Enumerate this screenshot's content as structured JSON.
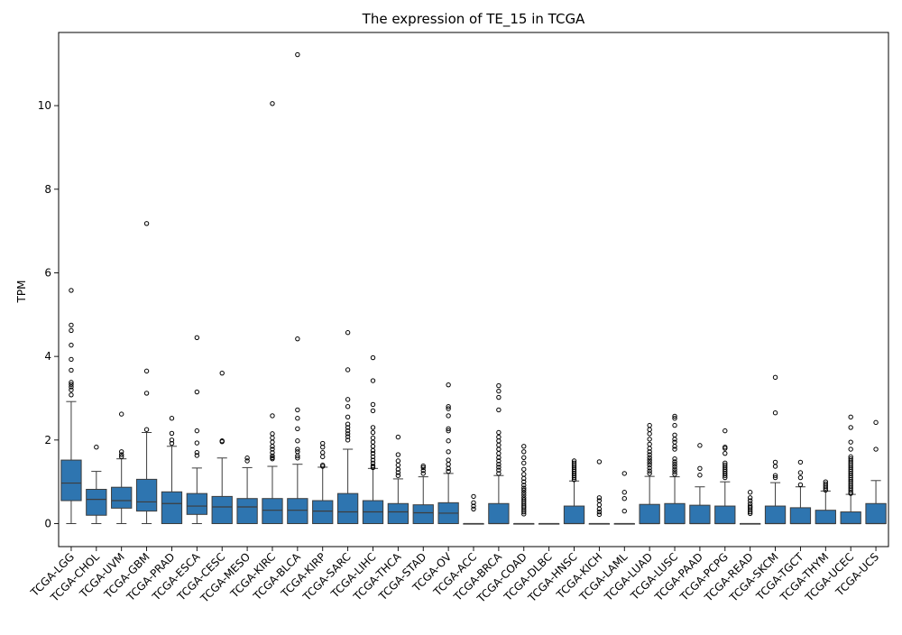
{
  "chart_data": {
    "type": "box",
    "title": "The expression of TE_15 in TCGA",
    "xlabel": "",
    "ylabel": "TPM",
    "ylim": [
      -0.55,
      11.75
    ],
    "yticks": [
      0,
      2,
      4,
      6,
      8,
      10
    ],
    "box_color": "#2e75b0",
    "series": [
      {
        "category": "TCGA-LGG",
        "q1": 0.55,
        "median": 0.97,
        "q3": 1.52,
        "whisker_low": 0.0,
        "whisker_high": 2.92,
        "outliers": [
          5.58,
          4.75,
          4.62,
          4.27,
          3.93,
          3.67,
          3.38,
          3.33,
          3.27,
          3.2,
          3.08
        ]
      },
      {
        "category": "TCGA-CHOL",
        "q1": 0.2,
        "median": 0.58,
        "q3": 0.82,
        "whisker_low": 0.0,
        "whisker_high": 1.25,
        "outliers": [
          1.83
        ]
      },
      {
        "category": "TCGA-UVM",
        "q1": 0.37,
        "median": 0.55,
        "q3": 0.87,
        "whisker_low": 0.0,
        "whisker_high": 1.55,
        "outliers": [
          2.62,
          1.72,
          1.65,
          1.6
        ]
      },
      {
        "category": "TCGA-GBM",
        "q1": 0.3,
        "median": 0.52,
        "q3": 1.06,
        "whisker_low": 0.0,
        "whisker_high": 2.18,
        "outliers": [
          7.18,
          3.65,
          3.12,
          2.25
        ]
      },
      {
        "category": "TCGA-PRAD",
        "q1": 0.0,
        "median": 0.48,
        "q3": 0.76,
        "whisker_low": 0.0,
        "whisker_high": 1.85,
        "outliers": [
          2.52,
          2.16,
          2.0,
          1.92
        ]
      },
      {
        "category": "TCGA-ESCA",
        "q1": 0.22,
        "median": 0.42,
        "q3": 0.72,
        "whisker_low": 0.0,
        "whisker_high": 1.33,
        "outliers": [
          4.45,
          3.15,
          2.22,
          1.93,
          1.7,
          1.63
        ]
      },
      {
        "category": "TCGA-CESC",
        "q1": 0.0,
        "median": 0.4,
        "q3": 0.65,
        "whisker_low": 0.0,
        "whisker_high": 1.57,
        "outliers": [
          3.6,
          1.98,
          1.96
        ]
      },
      {
        "category": "TCGA-MESO",
        "q1": 0.0,
        "median": 0.4,
        "q3": 0.6,
        "whisker_low": 0.0,
        "whisker_high": 1.34,
        "outliers": [
          1.57,
          1.5
        ]
      },
      {
        "category": "TCGA-KIRC",
        "q1": 0.0,
        "median": 0.32,
        "q3": 0.6,
        "whisker_low": 0.0,
        "whisker_high": 1.37,
        "outliers": [
          10.05,
          2.58,
          2.15,
          2.05,
          1.95,
          1.85,
          1.78,
          1.7,
          1.62,
          1.58,
          1.55
        ]
      },
      {
        "category": "TCGA-BLCA",
        "q1": 0.0,
        "median": 0.32,
        "q3": 0.6,
        "whisker_low": 0.0,
        "whisker_high": 1.42,
        "outliers": [
          11.22,
          4.42,
          2.72,
          2.52,
          2.27,
          1.98,
          1.78,
          1.72,
          1.62,
          1.57
        ]
      },
      {
        "category": "TCGA-KIRP",
        "q1": 0.0,
        "median": 0.3,
        "q3": 0.55,
        "whisker_low": 0.0,
        "whisker_high": 1.35,
        "outliers": [
          1.92,
          1.83,
          1.7,
          1.6,
          1.4,
          1.37
        ]
      },
      {
        "category": "TCGA-SARC",
        "q1": 0.0,
        "median": 0.28,
        "q3": 0.72,
        "whisker_low": 0.0,
        "whisker_high": 1.78,
        "outliers": [
          4.57,
          3.68,
          2.97,
          2.8,
          2.55,
          2.38,
          2.3,
          2.22,
          2.15,
          2.08,
          2.0
        ]
      },
      {
        "category": "TCGA-LIHC",
        "q1": 0.0,
        "median": 0.28,
        "q3": 0.55,
        "whisker_low": 0.0,
        "whisker_high": 1.32,
        "outliers": [
          3.97,
          3.42,
          2.85,
          2.7,
          2.3,
          2.18,
          2.05,
          1.95,
          1.85,
          1.75,
          1.68,
          1.6,
          1.52,
          1.45,
          1.38,
          1.34
        ]
      },
      {
        "category": "TCGA-THCA",
        "q1": 0.0,
        "median": 0.28,
        "q3": 0.48,
        "whisker_low": 0.0,
        "whisker_high": 1.07,
        "outliers": [
          2.07,
          1.65,
          1.5,
          1.4,
          1.3,
          1.22,
          1.15
        ]
      },
      {
        "category": "TCGA-STAD",
        "q1": 0.0,
        "median": 0.26,
        "q3": 0.45,
        "whisker_low": 0.0,
        "whisker_high": 1.12,
        "outliers": [
          1.38,
          1.34,
          1.27,
          1.2
        ]
      },
      {
        "category": "TCGA-OV",
        "q1": 0.0,
        "median": 0.25,
        "q3": 0.5,
        "whisker_low": 0.0,
        "whisker_high": 1.2,
        "outliers": [
          3.32,
          2.8,
          2.75,
          2.58,
          2.27,
          2.22,
          1.98,
          1.72,
          1.52,
          1.42,
          1.32,
          1.25
        ]
      },
      {
        "category": "TCGA-ACC",
        "q1": 0.0,
        "median": 0.0,
        "q3": 0.0,
        "whisker_low": 0.0,
        "whisker_high": 0.0,
        "outliers": [
          0.65,
          0.5,
          0.42,
          0.35
        ]
      },
      {
        "category": "TCGA-BRCA",
        "q1": 0.0,
        "median": 0.0,
        "q3": 0.48,
        "whisker_low": 0.0,
        "whisker_high": 1.15,
        "outliers": [
          3.3,
          3.17,
          3.02,
          2.72,
          2.18,
          2.07,
          1.98,
          1.88,
          1.78,
          1.68,
          1.58,
          1.5,
          1.42,
          1.35,
          1.28,
          1.2
        ]
      },
      {
        "category": "TCGA-COAD",
        "q1": 0.0,
        "median": 0.0,
        "q3": 0.0,
        "whisker_low": 0.0,
        "whisker_high": 0.0,
        "outliers": [
          1.85,
          1.72,
          1.58,
          1.45,
          1.3,
          1.18,
          1.08,
          1.0,
          0.92,
          0.85,
          0.8,
          0.74,
          0.68,
          0.62,
          0.57,
          0.52,
          0.47,
          0.42,
          0.38,
          0.33,
          0.28,
          0.23
        ]
      },
      {
        "category": "TCGA-DLBC",
        "q1": 0.0,
        "median": 0.0,
        "q3": 0.0,
        "whisker_low": 0.0,
        "whisker_high": 0.0,
        "outliers": []
      },
      {
        "category": "TCGA-HNSC",
        "q1": 0.0,
        "median": 0.0,
        "q3": 0.42,
        "whisker_low": 0.0,
        "whisker_high": 1.02,
        "outliers": [
          1.5,
          1.45,
          1.4,
          1.35,
          1.3,
          1.25,
          1.2,
          1.15,
          1.1,
          1.05
        ]
      },
      {
        "category": "TCGA-KICH",
        "q1": 0.0,
        "median": 0.0,
        "q3": 0.0,
        "whisker_low": 0.0,
        "whisker_high": 0.0,
        "outliers": [
          1.48,
          0.62,
          0.55,
          0.45,
          0.35,
          0.28,
          0.22
        ]
      },
      {
        "category": "TCGA-LAML",
        "q1": 0.0,
        "median": 0.0,
        "q3": 0.0,
        "whisker_low": 0.0,
        "whisker_high": 0.0,
        "outliers": [
          1.2,
          0.75,
          0.6,
          0.3
        ]
      },
      {
        "category": "TCGA-LUAD",
        "q1": 0.0,
        "median": 0.0,
        "q3": 0.46,
        "whisker_low": 0.0,
        "whisker_high": 1.13,
        "outliers": [
          2.35,
          2.25,
          2.15,
          2.02,
          1.9,
          1.8,
          1.72,
          1.65,
          1.58,
          1.52,
          1.46,
          1.4,
          1.33,
          1.26,
          1.2
        ]
      },
      {
        "category": "TCGA-LUSC",
        "q1": 0.0,
        "median": 0.0,
        "q3": 0.48,
        "whisker_low": 0.0,
        "whisker_high": 1.12,
        "outliers": [
          2.57,
          2.52,
          2.35,
          2.12,
          2.02,
          1.95,
          1.85,
          1.78,
          1.55,
          1.48,
          1.42,
          1.36,
          1.3,
          1.24,
          1.18
        ]
      },
      {
        "category": "TCGA-PAAD",
        "q1": 0.0,
        "median": 0.0,
        "q3": 0.44,
        "whisker_low": 0.0,
        "whisker_high": 0.88,
        "outliers": [
          1.87,
          1.32,
          1.16
        ]
      },
      {
        "category": "TCGA-PCPG",
        "q1": 0.0,
        "median": 0.0,
        "q3": 0.42,
        "whisker_low": 0.0,
        "whisker_high": 1.0,
        "outliers": [
          2.22,
          1.83,
          1.8,
          1.68,
          1.45,
          1.4,
          1.35,
          1.3,
          1.25,
          1.2,
          1.15,
          1.1
        ]
      },
      {
        "category": "TCGA-READ",
        "q1": 0.0,
        "median": 0.0,
        "q3": 0.0,
        "whisker_low": 0.0,
        "whisker_high": 0.0,
        "outliers": [
          0.75,
          0.62,
          0.55,
          0.48,
          0.42,
          0.38,
          0.33,
          0.28,
          0.24
        ]
      },
      {
        "category": "TCGA-SKCM",
        "q1": 0.0,
        "median": 0.0,
        "q3": 0.42,
        "whisker_low": 0.0,
        "whisker_high": 0.98,
        "outliers": [
          3.5,
          2.65,
          1.47,
          1.37,
          1.15,
          1.1
        ]
      },
      {
        "category": "TCGA-TGCT",
        "q1": 0.0,
        "median": 0.0,
        "q3": 0.38,
        "whisker_low": 0.0,
        "whisker_high": 0.88,
        "outliers": [
          1.47,
          1.22,
          1.1,
          0.93
        ]
      },
      {
        "category": "TCGA-THYM",
        "q1": 0.0,
        "median": 0.0,
        "q3": 0.32,
        "whisker_low": 0.0,
        "whisker_high": 0.78,
        "outliers": [
          1.0,
          0.95,
          0.9,
          0.85,
          0.8
        ]
      },
      {
        "category": "TCGA-UCEC",
        "q1": 0.0,
        "median": 0.0,
        "q3": 0.28,
        "whisker_low": 0.0,
        "whisker_high": 0.7,
        "outliers": [
          2.55,
          2.3,
          1.95,
          1.78,
          1.6,
          1.55,
          1.5,
          1.45,
          1.4,
          1.35,
          1.3,
          1.25,
          1.2,
          1.15,
          1.1,
          1.05,
          1.0,
          0.95,
          0.9,
          0.85,
          0.8,
          0.75,
          0.72
        ]
      },
      {
        "category": "TCGA-UCS",
        "q1": 0.0,
        "median": 0.0,
        "q3": 0.48,
        "whisker_low": 0.0,
        "whisker_high": 1.03,
        "outliers": [
          2.42,
          1.78
        ]
      }
    ]
  }
}
